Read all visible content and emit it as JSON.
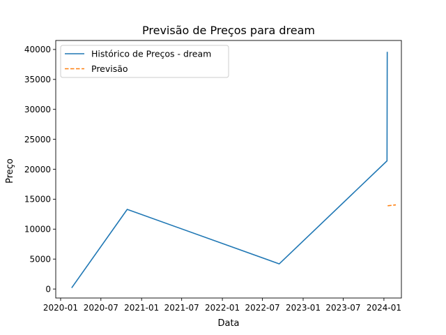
{
  "chart_data": {
    "type": "line",
    "title": "Previsão de Preços para dream",
    "xlabel": "Data",
    "ylabel": "Preço",
    "xlim": [
      "2019-12-10",
      "2024-03-20"
    ],
    "ylim": [
      -1500,
      41500
    ],
    "x_ticks": [
      {
        "date": "2020-01-01",
        "label": "2020-01"
      },
      {
        "date": "2020-07-01",
        "label": "2020-07"
      },
      {
        "date": "2021-01-01",
        "label": "2021-01"
      },
      {
        "date": "2021-07-01",
        "label": "2021-07"
      },
      {
        "date": "2022-01-01",
        "label": "2022-01"
      },
      {
        "date": "2022-07-01",
        "label": "2022-07"
      },
      {
        "date": "2023-01-01",
        "label": "2023-01"
      },
      {
        "date": "2023-07-01",
        "label": "2023-07"
      },
      {
        "date": "2024-01-01",
        "label": "2024-01"
      }
    ],
    "y_ticks": [
      0,
      5000,
      10000,
      15000,
      20000,
      25000,
      30000,
      35000,
      40000
    ],
    "grid": false,
    "legend_position": "top-left",
    "series": [
      {
        "name": "Histórico de Preços - dream",
        "color": "#1f77b4",
        "style": "solid",
        "points": [
          {
            "x": "2020-02-20",
            "y": 200
          },
          {
            "x": "2020-10-28",
            "y": 13300
          },
          {
            "x": "2022-09-15",
            "y": 4200
          },
          {
            "x": "2024-01-15",
            "y": 21400
          },
          {
            "x": "2024-01-16",
            "y": 39600
          }
        ]
      },
      {
        "name": "Previsão",
        "color": "#ff7f0e",
        "style": "dashed",
        "points": [
          {
            "x": "2024-01-18",
            "y": 13900
          },
          {
            "x": "2024-02-24",
            "y": 14050
          }
        ]
      }
    ]
  }
}
